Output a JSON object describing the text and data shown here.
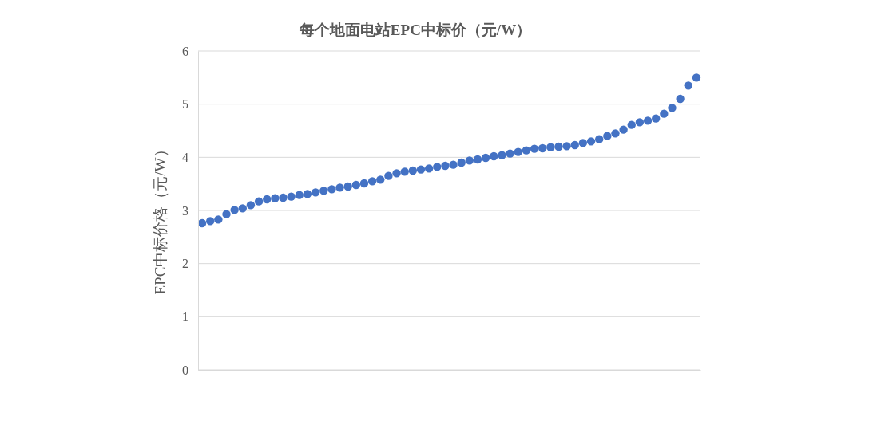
{
  "chart_data": {
    "type": "scatter",
    "title": "每个地面电站EPC中标价（元/W）",
    "ylabel": "EPC中标价格（元/W）",
    "categories": [
      null,
      null,
      null,
      null,
      null,
      null,
      null,
      null,
      null,
      null,
      null,
      null,
      null,
      null,
      null,
      null,
      null,
      null,
      null,
      null,
      null,
      null,
      null,
      null,
      null,
      null,
      null,
      null,
      null,
      null,
      null,
      null,
      null,
      null,
      null,
      null,
      null,
      null,
      null,
      null,
      null,
      null,
      null,
      null,
      null,
      null,
      null,
      null,
      null,
      null,
      null,
      null,
      null,
      null,
      null,
      null,
      null,
      null,
      null,
      null,
      null,
      null
    ],
    "series": [
      {
        "color": "#4472c4",
        "values": [
          2.76,
          2.8,
          2.83,
          2.93,
          3.01,
          3.04,
          3.1,
          3.17,
          3.21,
          3.23,
          3.24,
          3.26,
          3.29,
          3.31,
          3.34,
          3.37,
          3.4,
          3.43,
          3.45,
          3.48,
          3.51,
          3.55,
          3.58,
          3.65,
          3.7,
          3.73,
          3.75,
          3.77,
          3.79,
          3.82,
          3.84,
          3.86,
          3.9,
          3.94,
          3.96,
          3.99,
          4.02,
          4.04,
          4.07,
          4.1,
          4.13,
          4.16,
          4.17,
          4.19,
          4.2,
          4.21,
          4.23,
          4.27,
          4.3,
          4.34,
          4.4,
          4.45,
          4.52,
          4.61,
          4.66,
          4.69,
          4.73,
          4.82,
          4.93,
          5.1,
          5.35,
          5.5
        ]
      }
    ],
    "ylim": [
      0,
      6
    ],
    "yticks": [
      0,
      1,
      2,
      3,
      4,
      5,
      6
    ],
    "grid": "y",
    "marker": "circle"
  }
}
